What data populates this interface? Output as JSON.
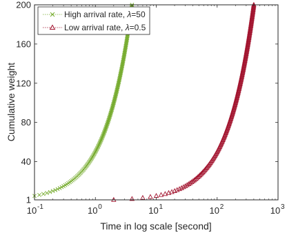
{
  "chart_data": {
    "type": "scatter",
    "xlabel": "Time in log scale [second]",
    "ylabel": "Cumulative weight",
    "x_scale": "log",
    "xlim": [
      0.1,
      1000
    ],
    "ylim": [
      1,
      200
    ],
    "x_ticks": [
      {
        "value": 0.1,
        "base": "10",
        "exp": "-1"
      },
      {
        "value": 1,
        "base": "10",
        "exp": "0"
      },
      {
        "value": 10,
        "base": "10",
        "exp": "1"
      },
      {
        "value": 100,
        "base": "10",
        "exp": "2"
      },
      {
        "value": 1000,
        "base": "10",
        "exp": "3"
      }
    ],
    "y_ticks": [
      {
        "value": 1,
        "label": "1"
      },
      {
        "value": 40,
        "label": "40"
      },
      {
        "value": 80,
        "label": "80"
      },
      {
        "value": 120,
        "label": "120"
      },
      {
        "value": 160,
        "label": "160"
      },
      {
        "value": 200,
        "label": "200"
      }
    ],
    "grid": false,
    "legend_position": "top-left",
    "series": [
      {
        "name_prefix": "High arrival rate, ",
        "name_symbol": "λ",
        "name_suffix": "=50",
        "marker": "x",
        "color": "#77AC30",
        "arrival_rate": 50,
        "weights": [
          1,
          200
        ]
      },
      {
        "name_prefix": "Low arrival rate, ",
        "name_symbol": "λ",
        "name_suffix": "=0.5",
        "marker": "triangle",
        "color": "#A2142F",
        "arrival_rate": 0.5,
        "weights": [
          1,
          200
        ]
      }
    ]
  }
}
